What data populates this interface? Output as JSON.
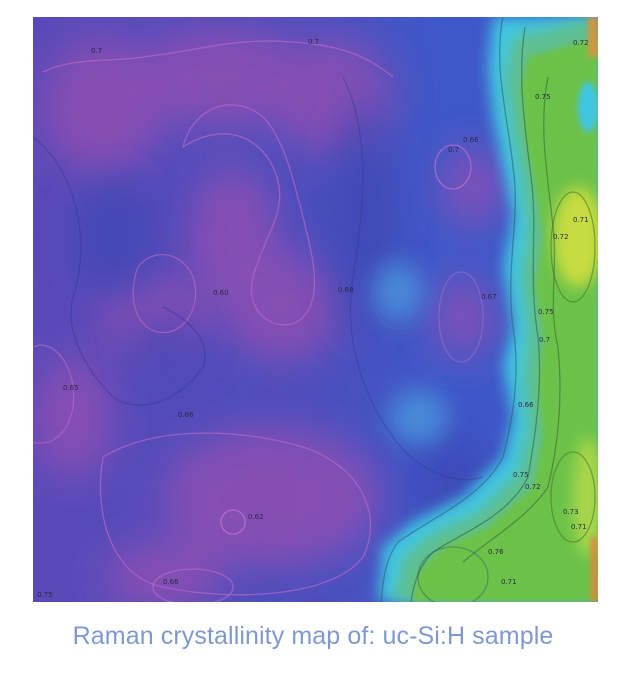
{
  "figure": {
    "caption": "Raman crystallinity map of: uc-Si:H sample",
    "colors": {
      "caption": "#7f99cf",
      "base_blue": "#4a4fb6",
      "magenta": "#8e4fb0",
      "cyan": "#3ec6e2",
      "green": "#6cc24a",
      "yellow": "#d8e03a",
      "orange": "#e0873a"
    }
  },
  "contour_labels": [
    {
      "id": "l1",
      "text": "0.7"
    },
    {
      "id": "l2",
      "text": "0.7"
    },
    {
      "id": "l3",
      "text": "0.75"
    },
    {
      "id": "l4",
      "text": "0.72"
    },
    {
      "id": "l5",
      "text": "0.66"
    },
    {
      "id": "l6",
      "text": "0.7"
    },
    {
      "id": "l7",
      "text": "0.71"
    },
    {
      "id": "l8",
      "text": "0.72"
    },
    {
      "id": "l9",
      "text": "0.68"
    },
    {
      "id": "l10",
      "text": "0.67"
    },
    {
      "id": "l11",
      "text": "0.60"
    },
    {
      "id": "l12",
      "text": "0.75"
    },
    {
      "id": "l13",
      "text": "0.65"
    },
    {
      "id": "l14",
      "text": "0.66"
    },
    {
      "id": "l15",
      "text": "0.66"
    },
    {
      "id": "l16",
      "text": "0.7"
    },
    {
      "id": "l17",
      "text": "0.75"
    },
    {
      "id": "l18",
      "text": "0.72"
    },
    {
      "id": "l19",
      "text": "0.73"
    },
    {
      "id": "l20",
      "text": "0.71"
    },
    {
      "id": "l21",
      "text": "0.62"
    },
    {
      "id": "l22",
      "text": "0.66"
    },
    {
      "id": "l23",
      "text": "0.75"
    },
    {
      "id": "l24",
      "text": "0.76"
    },
    {
      "id": "l25",
      "text": "0.71"
    }
  ]
}
